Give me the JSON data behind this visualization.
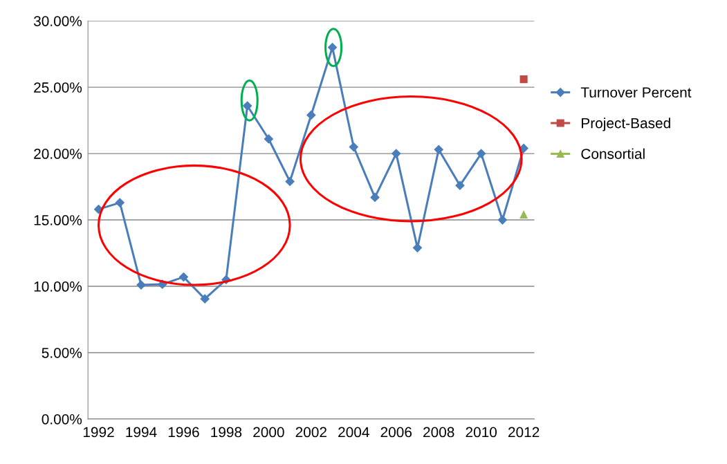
{
  "chart_data": {
    "type": "line",
    "categories": [
      "1992",
      null,
      "1994",
      null,
      "1996",
      null,
      "1998",
      null,
      "2000",
      null,
      "2002",
      null,
      "2004",
      null,
      "2006",
      null,
      "2008",
      null,
      "2010",
      null,
      "2012"
    ],
    "series": [
      {
        "name": "Turnover Percent",
        "color": "#4a7ebb",
        "marker": "diamond",
        "values": [
          15.8,
          16.3,
          10.1,
          10.15,
          10.7,
          9.05,
          10.5,
          23.6,
          21.1,
          17.9,
          22.9,
          28.0,
          20.5,
          16.7,
          20.0,
          12.9,
          20.3,
          17.6,
          20.0,
          15.0,
          20.4
        ]
      },
      {
        "name": "Project-Based",
        "color": "#be4b48",
        "marker": "square",
        "values": [
          null,
          null,
          null,
          null,
          null,
          null,
          null,
          null,
          null,
          null,
          null,
          null,
          null,
          null,
          null,
          null,
          null,
          null,
          null,
          null,
          25.6
        ]
      },
      {
        "name": "Consortial",
        "color": "#98b954",
        "marker": "triangle",
        "values": [
          null,
          null,
          null,
          null,
          null,
          null,
          null,
          null,
          null,
          null,
          null,
          null,
          null,
          null,
          null,
          null,
          null,
          null,
          null,
          null,
          15.4
        ]
      }
    ],
    "ylim": [
      0,
      30
    ],
    "yticks": [
      {
        "value": 0,
        "label": "0.00%"
      },
      {
        "value": 5,
        "label": "5.00%"
      },
      {
        "value": 10,
        "label": "10.00%"
      },
      {
        "value": 15,
        "label": "15.00%"
      },
      {
        "value": 20,
        "label": "20.00%"
      },
      {
        "value": 25,
        "label": "25.00%"
      },
      {
        "value": 30,
        "label": "30.00%"
      }
    ],
    "grid": "y",
    "legend": "right",
    "line_style": "solid"
  }
}
